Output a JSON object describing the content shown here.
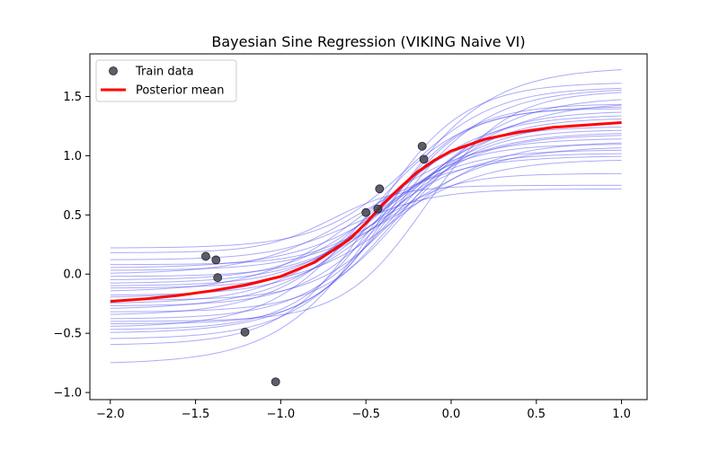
{
  "chart_data": {
    "type": "line",
    "title": "Bayesian Sine Regression (VIKING Naive VI)",
    "xlabel": "",
    "ylabel": "",
    "xlim": [
      -2.12,
      1.15
    ],
    "ylim": [
      -1.06,
      1.86
    ],
    "xticks": [
      -2.0,
      -1.5,
      -1.0,
      -0.5,
      0.0,
      0.5,
      1.0
    ],
    "yticks": [
      -1.0,
      -0.5,
      0.0,
      0.5,
      1.0,
      1.5
    ],
    "xtick_labels": [
      "−2.0",
      "−1.5",
      "−1.0",
      "−0.5",
      "0.0",
      "0.5",
      "1.0"
    ],
    "ytick_labels": [
      "−1.0",
      "−0.5",
      "0.0",
      "0.5",
      "1.0",
      "1.5"
    ],
    "grid": false,
    "legend_position": "top-left",
    "legend": [
      {
        "label": "Train data",
        "marker": "circle",
        "color": "#3a3a4a"
      },
      {
        "label": "Posterior mean",
        "marker": "line",
        "color": "#ff0000"
      }
    ],
    "scatter": {
      "name": "Train data",
      "color": "#3a3a4a",
      "points": [
        {
          "x": -1.44,
          "y": 0.15
        },
        {
          "x": -1.38,
          "y": 0.12
        },
        {
          "x": -1.37,
          "y": -0.03
        },
        {
          "x": -1.21,
          "y": -0.49
        },
        {
          "x": -1.03,
          "y": -0.91
        },
        {
          "x": -0.5,
          "y": 0.52
        },
        {
          "x": -0.43,
          "y": 0.55
        },
        {
          "x": -0.42,
          "y": 0.72
        },
        {
          "x": -0.17,
          "y": 1.08
        },
        {
          "x": -0.16,
          "y": 0.97
        }
      ]
    },
    "mean": {
      "name": "Posterior mean",
      "color": "#ff0000",
      "x": [
        -2.0,
        -1.8,
        -1.6,
        -1.4,
        -1.2,
        -1.0,
        -0.8,
        -0.6,
        -0.5,
        -0.4,
        -0.3,
        -0.2,
        -0.1,
        0.0,
        0.2,
        0.4,
        0.6,
        0.8,
        1.0
      ],
      "y": [
        -0.23,
        -0.21,
        -0.18,
        -0.14,
        -0.09,
        -0.02,
        0.1,
        0.29,
        0.43,
        0.59,
        0.73,
        0.86,
        0.96,
        1.04,
        1.14,
        1.2,
        1.24,
        1.26,
        1.28
      ]
    },
    "samples": {
      "name": "Posterior samples",
      "color": "#4444ee",
      "x_range": [
        -2.0,
        1.0
      ],
      "curves": [
        {
          "low": -0.76,
          "high": 1.75,
          "center": -0.4,
          "width": 0.3
        },
        {
          "low": -0.6,
          "high": 1.62,
          "center": -0.45,
          "width": 0.26
        },
        {
          "low": -0.55,
          "high": 1.57,
          "center": -0.35,
          "width": 0.28
        },
        {
          "low": -0.5,
          "high": 1.5,
          "center": -0.3,
          "width": 0.3
        },
        {
          "low": -0.47,
          "high": 1.44,
          "center": -0.42,
          "width": 0.25
        },
        {
          "low": -0.45,
          "high": 1.42,
          "center": -0.5,
          "width": 0.28
        },
        {
          "low": -0.42,
          "high": 1.4,
          "center": -0.38,
          "width": 0.22
        },
        {
          "low": -0.38,
          "high": 1.38,
          "center": -0.33,
          "width": 0.27
        },
        {
          "low": -0.35,
          "high": 1.35,
          "center": -0.45,
          "width": 0.3
        },
        {
          "low": -0.32,
          "high": 1.32,
          "center": -0.28,
          "width": 0.25
        },
        {
          "low": -0.3,
          "high": 1.3,
          "center": -0.4,
          "width": 0.32
        },
        {
          "low": -0.27,
          "high": 1.28,
          "center": -0.36,
          "width": 0.26
        },
        {
          "low": -0.25,
          "high": 1.25,
          "center": -0.48,
          "width": 0.28
        },
        {
          "low": -0.22,
          "high": 1.22,
          "center": -0.31,
          "width": 0.24
        },
        {
          "low": -0.2,
          "high": 1.2,
          "center": -0.43,
          "width": 0.3
        },
        {
          "low": -0.18,
          "high": 1.18,
          "center": -0.37,
          "width": 0.27
        },
        {
          "low": -0.15,
          "high": 1.15,
          "center": -0.52,
          "width": 0.3
        },
        {
          "low": -0.12,
          "high": 1.12,
          "center": -0.29,
          "width": 0.28
        },
        {
          "low": -0.1,
          "high": 1.1,
          "center": -0.44,
          "width": 0.25
        },
        {
          "low": -0.08,
          "high": 1.08,
          "center": -0.34,
          "width": 0.3
        },
        {
          "low": -0.05,
          "high": 1.05,
          "center": -0.46,
          "width": 0.26
        },
        {
          "low": -0.02,
          "high": 1.02,
          "center": -0.39,
          "width": 0.24
        },
        {
          "low": 0.0,
          "high": 1.0,
          "center": -0.55,
          "width": 0.3
        },
        {
          "low": 0.03,
          "high": 0.97,
          "center": -0.32,
          "width": 0.28
        },
        {
          "low": 0.05,
          "high": 1.46,
          "center": -0.2,
          "width": 0.32
        },
        {
          "low": 0.08,
          "high": 0.85,
          "center": -0.41,
          "width": 0.22
        },
        {
          "low": 0.12,
          "high": 0.72,
          "center": -0.58,
          "width": 0.24
        },
        {
          "low": 0.18,
          "high": 0.75,
          "center": -0.7,
          "width": 0.2
        },
        {
          "low": 0.22,
          "high": 1.58,
          "center": -0.25,
          "width": 0.26
        },
        {
          "low": -0.4,
          "high": 1.55,
          "center": -0.15,
          "width": 0.24
        }
      ]
    }
  }
}
